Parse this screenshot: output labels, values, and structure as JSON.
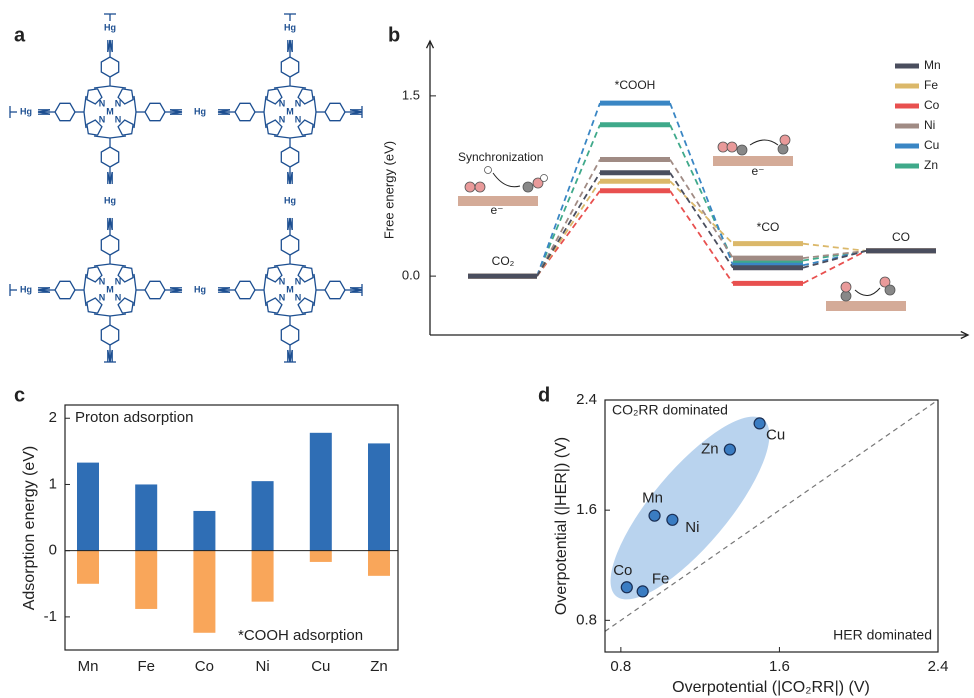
{
  "structure_panel": {
    "panel_label": "a",
    "linker_label": "Hg",
    "metal_label": "M",
    "nitrogen_label": "N"
  },
  "chart_data": [
    {
      "type": "energy",
      "panel_label": "b",
      "y_label": "Free energy (eV)",
      "categories": [
        "CO₂",
        "*COOH",
        "*CO",
        "CO"
      ],
      "ylim": [
        -0.49,
        1.94
      ],
      "yticks": [
        {
          "value": 0,
          "label": "0.0"
        },
        1.5
      ],
      "legend": "upper right",
      "annotations": [
        "Synchronization",
        "e⁻",
        "e⁻"
      ],
      "series": [
        {
          "name": "Mn",
          "color": "#4a4e5e",
          "values": [
            0,
            0.86,
            0.07,
            0.21
          ]
        },
        {
          "name": "Fe",
          "color": "#dbb86a",
          "values": [
            0,
            0.79,
            0.27,
            0.21
          ]
        },
        {
          "name": "Co",
          "color": "#e8504f",
          "values": [
            0,
            0.71,
            -0.06,
            0.21
          ]
        },
        {
          "name": "Ni",
          "color": "#a08b84",
          "values": [
            0,
            0.97,
            0.15,
            0.21
          ]
        },
        {
          "name": "Cu",
          "color": "#3a86c4",
          "values": [
            0,
            1.44,
            0.09,
            0.21
          ]
        },
        {
          "name": "Zn",
          "color": "#3fa98a",
          "values": [
            0,
            1.26,
            0.13,
            0.21
          ]
        }
      ]
    },
    {
      "type": "bar",
      "panel_label": "c",
      "y_label": "Adsorption energy (eV)",
      "categories": [
        "Mn",
        "Fe",
        "Co",
        "Ni",
        "Cu",
        "Zn"
      ],
      "ylim": [
        -1.5,
        2.2
      ],
      "yticks": [
        -1,
        0,
        1,
        2
      ],
      "series": [
        {
          "name": "Proton adsorption",
          "color": "#2f6eb5",
          "values": [
            1.33,
            1.0,
            0.6,
            1.05,
            1.78,
            1.62
          ]
        },
        {
          "name": "*COOH adsorption",
          "color": "#f9a65a",
          "values": [
            -0.5,
            -0.88,
            -1.24,
            -0.77,
            -0.17,
            -0.38
          ]
        }
      ]
    },
    {
      "type": "scatter",
      "panel_label": "d",
      "x_label": "Overpotential (|CO₂RR|) (V)",
      "y_label": "Overpotential (|HER|) (V)",
      "xlim": [
        0.72,
        2.4
      ],
      "ylim": [
        0.57,
        2.4
      ],
      "xticks": [
        0.8,
        1.6,
        2.4
      ],
      "yticks": [
        0.8,
        1.6,
        2.4
      ],
      "annotations": [
        "CO₂RR dominated",
        "HER dominated"
      ],
      "point_labels": [
        "Mn",
        "Fe",
        "Co",
        "Ni",
        "Cu",
        "Zn"
      ],
      "color": "#3a7cc2",
      "x": [
        0.97,
        0.91,
        0.83,
        1.06,
        1.5,
        1.35
      ],
      "y": [
        1.56,
        1.01,
        1.04,
        1.53,
        2.23,
        2.04
      ]
    }
  ]
}
